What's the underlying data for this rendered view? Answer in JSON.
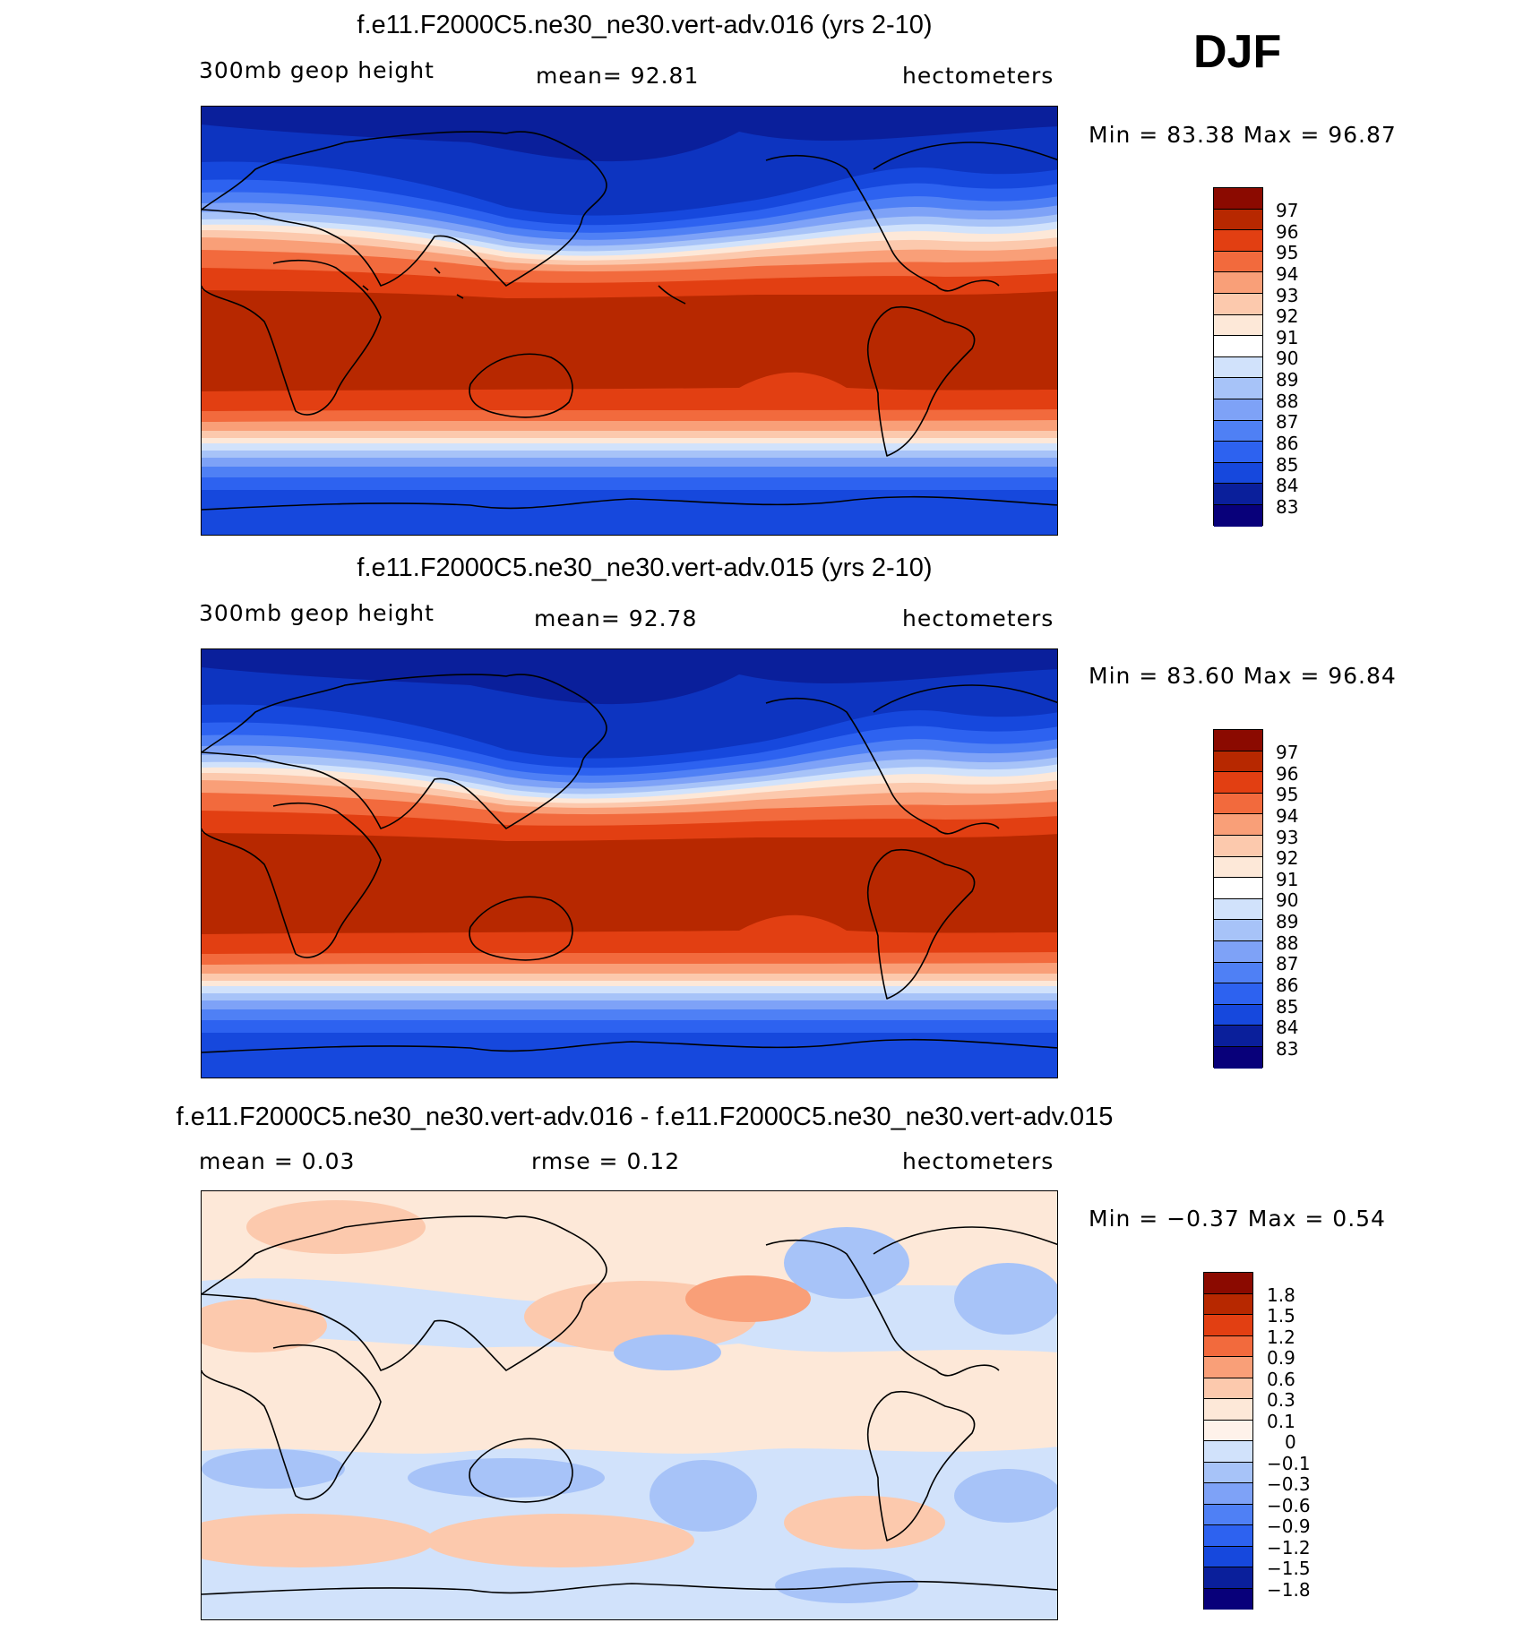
{
  "season": "DJF",
  "colors": {
    "abs_levels": [
      "#08007a",
      "#0a1f9b",
      "#0d34c0",
      "#1648dd",
      "#2d62f0",
      "#4f80f5",
      "#7ea2f7",
      "#a7c3f8",
      "#d1e2fb",
      "#fde8d8",
      "#fcc9ad",
      "#f99f78",
      "#f26a3d",
      "#e23f12",
      "#b72800",
      "#8b0a00"
    ],
    "diff_levels": [
      "#08007a",
      "#0a1f9b",
      "#0d34c0",
      "#2d62f0",
      "#4f80f5",
      "#7ea2f7",
      "#a7c3f8",
      "#d1e2fb",
      "#fde8d8",
      "#fcc9ad",
      "#f99f78",
      "#f26a3d",
      "#e23f12",
      "#b72800",
      "#8b0a00"
    ]
  },
  "panels": [
    {
      "title": "f.e11.F2000C5.ne30_ne30.vert-adv.016 (yrs 2-10)",
      "left_label": "300mb  geop  height",
      "center_label": "mean=   92.81",
      "right_label": "hectometers",
      "stats": "Min  =    83.38  Max  =    96.87",
      "colorbar_labels": [
        "97",
        "96",
        "95",
        "94",
        "93",
        "92",
        "91",
        "90",
        "89",
        "88",
        "87",
        "86",
        "85",
        "84",
        "83"
      ]
    },
    {
      "title": "f.e11.F2000C5.ne30_ne30.vert-adv.015 (yrs 2-10)",
      "left_label": "300mb  geop  height",
      "center_label": "mean=   92.78",
      "right_label": "hectometers",
      "stats": "Min  =    83.60  Max  =    96.84",
      "colorbar_labels": [
        "97",
        "96",
        "95",
        "94",
        "93",
        "92",
        "91",
        "90",
        "89",
        "88",
        "87",
        "86",
        "85",
        "84",
        "83"
      ]
    },
    {
      "title": "f.e11.F2000C5.ne30_ne30.vert-adv.016 - f.e11.F2000C5.ne30_ne30.vert-adv.015",
      "left_label": "mean  =     0.03",
      "center_label": "rmse  =     0.12",
      "right_label": "hectometers",
      "stats": "Min  =   −0.37  Max  =     0.54",
      "colorbar_labels": [
        "1.8",
        "1.5",
        "1.2",
        "0.9",
        "0.6",
        "0.3",
        "0.1",
        "0",
        "−0.1",
        "−0.3",
        "−0.6",
        "−0.9",
        "−1.2",
        "−1.5",
        "−1.8"
      ]
    }
  ],
  "chart_data": [
    {
      "type": "heatmap",
      "title": "f.e11.F2000C5.ne30_ne30.vert-adv.016 (yrs 2-10)",
      "variable": "300mb geop height",
      "units": "hectometers",
      "mean": 92.81,
      "min": 83.38,
      "max": 96.87,
      "contour_levels": [
        83,
        84,
        85,
        86,
        87,
        88,
        89,
        90,
        91,
        92,
        93,
        94,
        95,
        96,
        97
      ]
    },
    {
      "type": "heatmap",
      "title": "f.e11.F2000C5.ne30_ne30.vert-adv.015 (yrs 2-10)",
      "variable": "300mb geop height",
      "units": "hectometers",
      "mean": 92.78,
      "min": 83.6,
      "max": 96.84,
      "contour_levels": [
        83,
        84,
        85,
        86,
        87,
        88,
        89,
        90,
        91,
        92,
        93,
        94,
        95,
        96,
        97
      ]
    },
    {
      "type": "heatmap",
      "title": "f.e11.F2000C5.ne30_ne30.vert-adv.016 - f.e11.F2000C5.ne30_ne30.vert-adv.015",
      "units": "hectometers",
      "mean": 0.03,
      "rmse": 0.12,
      "min": -0.37,
      "max": 0.54,
      "contour_levels": [
        -1.8,
        -1.5,
        -1.2,
        -0.9,
        -0.6,
        -0.3,
        -0.1,
        0,
        0.1,
        0.3,
        0.6,
        0.9,
        1.2,
        1.5,
        1.8
      ]
    }
  ]
}
